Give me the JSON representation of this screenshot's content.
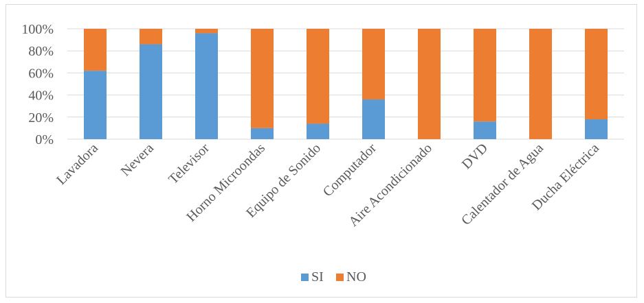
{
  "chart_data": {
    "type": "bar",
    "stacked": true,
    "percent": true,
    "categories": [
      "Lavadora",
      "Nevera",
      "Televisor",
      "Horno Microondas",
      "Equipo de Sonido",
      "Computador",
      "Aire Acondicionado",
      "DVD",
      "Calentador de Agua",
      "Ducha Eléctrica"
    ],
    "series": [
      {
        "name": "SI",
        "color": "#5b9bd5",
        "values": [
          62,
          86,
          96,
          10,
          14,
          36,
          0,
          16,
          0,
          18
        ]
      },
      {
        "name": "NO",
        "color": "#ed7d31",
        "values": [
          38,
          14,
          4,
          90,
          86,
          64,
          100,
          84,
          100,
          82
        ]
      }
    ],
    "y_ticks": [
      "0%",
      "20%",
      "40%",
      "60%",
      "80%",
      "100%"
    ],
    "ylim": [
      0,
      100
    ],
    "grid": true,
    "legend_position": "bottom"
  }
}
